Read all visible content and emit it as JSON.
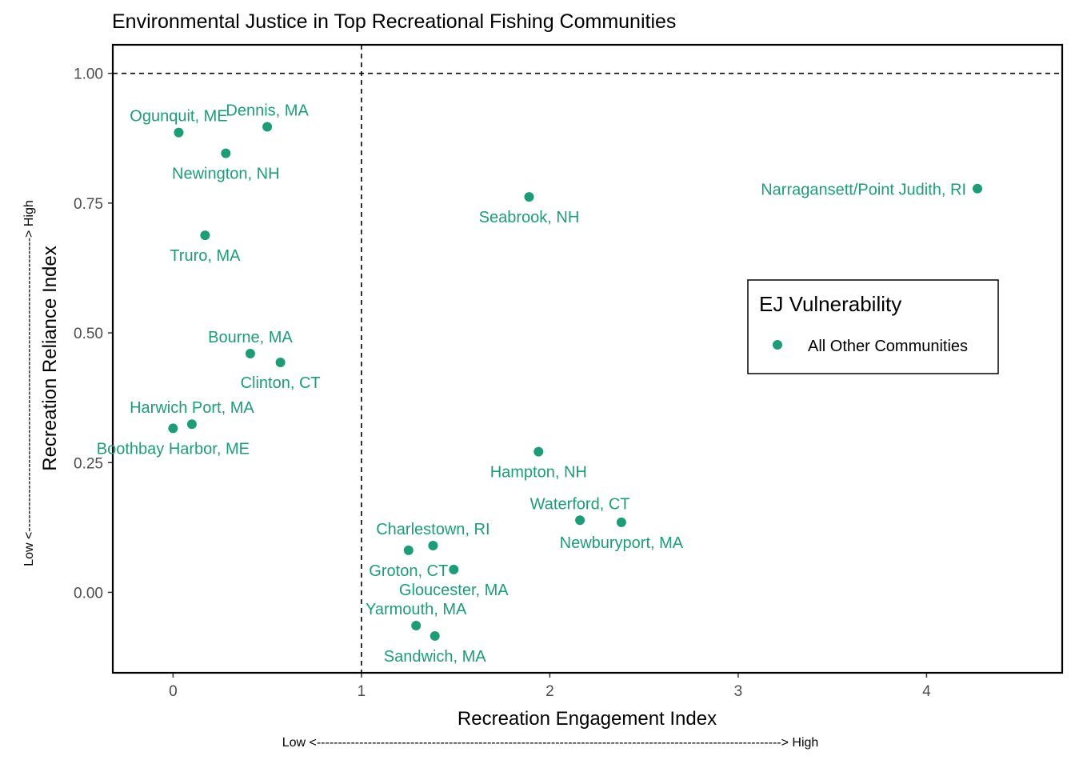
{
  "chart_data": {
    "type": "scatter",
    "title": "Environmental Justice in Top Recreational Fishing Communities",
    "xlabel": "Recreation Engagement Index",
    "ylabel": "Recreation Reliance Index",
    "x_arrow_note": "Low <-------------------------------------------------------------------------------------------------------------> High",
    "y_arrow_note": "Low <---------------------------------------------------------------------> High",
    "xlim": [
      -0.32,
      4.72
    ],
    "ylim": [
      -0.155,
      1.055
    ],
    "x_ticks": [
      0,
      1,
      2,
      3,
      4
    ],
    "x_tick_labels": [
      "0",
      "1",
      "2",
      "3",
      "4"
    ],
    "y_ticks": [
      0,
      0.25,
      0.5,
      0.75,
      1.0
    ],
    "y_tick_labels": [
      "0.00",
      "0.25",
      "0.50",
      "0.75",
      "1.00"
    ],
    "reference_lines": {
      "x": 1,
      "y": 1,
      "style": "dashed"
    },
    "grid": false,
    "point_color": "#1b9e77",
    "legend": {
      "title": "EJ Vulnerability",
      "entries": [
        "All Other Communities"
      ],
      "placement": "right"
    },
    "series": [
      {
        "name": "All Other Communities",
        "points": [
          {
            "label": "Ogunquit, ME",
            "x": 0.03,
            "y": 0.886,
            "label_pos": "above"
          },
          {
            "label": "Dennis, MA",
            "x": 0.5,
            "y": 0.897,
            "label_pos": "above"
          },
          {
            "label": "Newington, NH",
            "x": 0.28,
            "y": 0.846,
            "label_pos": "below"
          },
          {
            "label": "Truro, MA",
            "x": 0.17,
            "y": 0.688,
            "label_pos": "below"
          },
          {
            "label": "Seabrook, NH",
            "x": 1.89,
            "y": 0.762,
            "label_pos": "below"
          },
          {
            "label": "Narragansett/Point Judith, RI",
            "x": 4.27,
            "y": 0.778,
            "label_pos": "left"
          },
          {
            "label": "Bourne, MA",
            "x": 0.41,
            "y": 0.46,
            "label_pos": "above"
          },
          {
            "label": "Clinton, CT",
            "x": 0.57,
            "y": 0.443,
            "label_pos": "below"
          },
          {
            "label": "Harwich Port, MA",
            "x": 0.1,
            "y": 0.324,
            "label_pos": "above"
          },
          {
            "label": "Boothbay Harbor, ME",
            "x": 0.0,
            "y": 0.316,
            "label_pos": "below"
          },
          {
            "label": "Hampton, NH",
            "x": 1.94,
            "y": 0.271,
            "label_pos": "below"
          },
          {
            "label": "Waterford, CT",
            "x": 2.16,
            "y": 0.139,
            "label_pos": "above"
          },
          {
            "label": "Newburyport, MA",
            "x": 2.38,
            "y": 0.135,
            "label_pos": "below"
          },
          {
            "label": "Charlestown, RI",
            "x": 1.38,
            "y": 0.09,
            "label_pos": "above"
          },
          {
            "label": "Groton, CT",
            "x": 1.25,
            "y": 0.081,
            "label_pos": "below"
          },
          {
            "label": "Gloucester, MA",
            "x": 1.49,
            "y": 0.044,
            "label_pos": "below"
          },
          {
            "label": "Yarmouth, MA",
            "x": 1.29,
            "y": -0.064,
            "label_pos": "above"
          },
          {
            "label": "Sandwich, MA",
            "x": 1.39,
            "y": -0.084,
            "label_pos": "below"
          }
        ]
      }
    ]
  }
}
